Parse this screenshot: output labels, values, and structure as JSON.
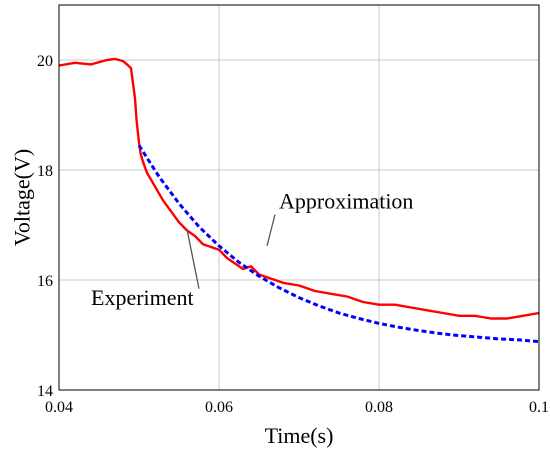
{
  "chart_data": {
    "type": "line",
    "xlabel": "Time(s)",
    "ylabel": "Voltage(V)",
    "xlim": [
      0.04,
      0.1
    ],
    "ylim": [
      14,
      21
    ],
    "grid": true,
    "x_ticks": [
      {
        "value": 0.04,
        "label": "0.04"
      },
      {
        "value": 0.06,
        "label": "0.06"
      },
      {
        "value": 0.08,
        "label": "0.08"
      },
      {
        "value": 0.1,
        "label": "0.1"
      }
    ],
    "y_ticks": [
      {
        "value": 14,
        "label": "14"
      },
      {
        "value": 16,
        "label": "16"
      },
      {
        "value": 18,
        "label": "18"
      },
      {
        "value": 20,
        "label": "20"
      }
    ],
    "series": [
      {
        "name": "Experiment",
        "color": "#ff0000",
        "style": "solid",
        "x": [
          0.04,
          0.042,
          0.044,
          0.046,
          0.047,
          0.048,
          0.0485,
          0.049,
          0.0495,
          0.0497,
          0.05,
          0.0502,
          0.0505,
          0.051,
          0.052,
          0.053,
          0.054,
          0.055,
          0.056,
          0.057,
          0.058,
          0.059,
          0.06,
          0.061,
          0.062,
          0.063,
          0.064,
          0.065,
          0.066,
          0.067,
          0.068,
          0.07,
          0.072,
          0.074,
          0.076,
          0.078,
          0.08,
          0.082,
          0.084,
          0.086,
          0.088,
          0.09,
          0.092,
          0.094,
          0.096,
          0.098,
          0.1
        ],
        "y": [
          19.9,
          19.95,
          19.92,
          20.0,
          20.02,
          19.98,
          19.92,
          19.85,
          19.3,
          18.9,
          18.5,
          18.3,
          18.15,
          17.95,
          17.7,
          17.45,
          17.25,
          17.05,
          16.9,
          16.8,
          16.65,
          16.6,
          16.55,
          16.4,
          16.3,
          16.2,
          16.25,
          16.1,
          16.05,
          16.0,
          15.95,
          15.9,
          15.8,
          15.75,
          15.7,
          15.6,
          15.55,
          15.55,
          15.5,
          15.45,
          15.4,
          15.35,
          15.35,
          15.3,
          15.3,
          15.35,
          15.4
        ]
      },
      {
        "name": "Approximation",
        "color": "#0000ff",
        "style": "dashed",
        "x": [
          0.05,
          0.0525,
          0.055,
          0.0575,
          0.06,
          0.0625,
          0.065,
          0.0675,
          0.07,
          0.0725,
          0.075,
          0.0775,
          0.08,
          0.0825,
          0.085,
          0.0875,
          0.09,
          0.0925,
          0.095,
          0.0975,
          0.1
        ],
        "y": [
          18.45,
          17.88,
          17.39,
          16.97,
          16.62,
          16.32,
          16.07,
          15.86,
          15.68,
          15.53,
          15.4,
          15.3,
          15.21,
          15.14,
          15.08,
          15.03,
          14.99,
          14.96,
          14.93,
          14.91,
          14.88
        ]
      }
    ],
    "annotations": [
      {
        "text": "Approximation",
        "x": 0.0675,
        "y": 17.3,
        "point_x": 0.066,
        "point_y": 16.62
      },
      {
        "text": "Experiment",
        "x": 0.044,
        "y": 15.55,
        "point_x": 0.056,
        "point_y": 16.92
      }
    ]
  }
}
